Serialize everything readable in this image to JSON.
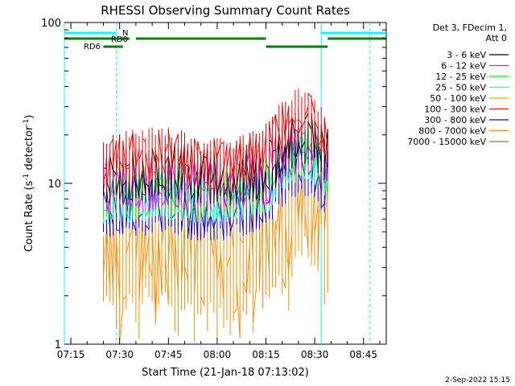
{
  "chart_data": {
    "type": "line",
    "title": "RHESSI Observing Summary Count Rates",
    "xlabel": "Start Time (21-Jan-18 07:13:02)",
    "ylabel_main": "Count Rate (s",
    "ylabel_sup1": "-1",
    "ylabel_mid": " detector",
    "ylabel_sup2": "-1",
    "ylabel_end": ")",
    "ylabel": "Count Rate (s-1 detector-1)",
    "yscale": "log",
    "ylim": [
      1,
      100
    ],
    "xlim": [
      "07:13",
      "08:52"
    ],
    "x_ticks": [
      "07:15",
      "07:30",
      "07:45",
      "08:00",
      "08:15",
      "08:30",
      "08:45"
    ],
    "y_ticks": [
      "1",
      "10",
      "100"
    ],
    "legend_title_1": "Det 3, FDecim 1,",
    "legend_title_2": "Att 0",
    "legend_position": "right",
    "footer_date": "2-Sep-2022 15:15",
    "series": [
      {
        "name": "3 - 6 keV",
        "color": "#000000",
        "x": [
          "07:25",
          "07:35",
          "07:45",
          "07:55",
          "08:05",
          "08:15",
          "08:20",
          "08:25",
          "08:30",
          "08:34"
        ],
        "values": [
          11,
          11,
          12,
          11,
          11,
          12,
          16,
          20,
          18,
          15
        ]
      },
      {
        "name": "6 - 12 keV",
        "color": "#ff00ff",
        "x": [
          "07:25",
          "07:35",
          "07:45",
          "07:55",
          "08:05",
          "08:15",
          "08:20",
          "08:25",
          "08:30",
          "08:34"
        ],
        "values": [
          10,
          10,
          10.5,
          10,
          10,
          11,
          15,
          18,
          17,
          14
        ]
      },
      {
        "name": "12 - 25 keV",
        "color": "#00ff00",
        "x": [
          "07:25",
          "07:35",
          "07:45",
          "07:55",
          "08:05",
          "08:15",
          "08:20",
          "08:25",
          "08:30",
          "08:34"
        ],
        "values": [
          9,
          9,
          9.5,
          9,
          9,
          10,
          14,
          17,
          15,
          13
        ]
      },
      {
        "name": "25 - 50 keV",
        "color": "#00ffff",
        "x": [
          "07:25",
          "07:35",
          "07:45",
          "07:55",
          "08:05",
          "08:15",
          "08:20",
          "08:25",
          "08:30",
          "08:34"
        ],
        "values": [
          8.5,
          8.5,
          9,
          8.5,
          8.5,
          9.5,
          13,
          16,
          15,
          12
        ]
      },
      {
        "name": "50 - 100 keV",
        "color": "#c8c800",
        "x": [],
        "values": []
      },
      {
        "name": "100 - 300 keV",
        "color": "#ff0000",
        "x": [
          "07:25",
          "07:30",
          "07:35",
          "07:40",
          "07:45",
          "07:50",
          "07:55",
          "08:00",
          "08:05",
          "08:10",
          "08:15",
          "08:20",
          "08:25",
          "08:30",
          "08:34"
        ],
        "values": [
          13,
          14,
          15,
          15,
          16,
          14,
          13,
          13,
          13,
          14,
          16,
          22,
          27,
          25,
          19
        ]
      },
      {
        "name": "300 - 800 keV",
        "color": "#0000ff",
        "x": [
          "07:25",
          "07:30",
          "07:35",
          "07:40",
          "07:45",
          "07:50",
          "07:55",
          "08:00",
          "08:05",
          "08:10",
          "08:15",
          "08:20",
          "08:25",
          "08:30",
          "08:34"
        ],
        "values": [
          7,
          7.5,
          7.5,
          7.5,
          8,
          7,
          7,
          7,
          7,
          7.5,
          8.5,
          11,
          13,
          12,
          10
        ]
      },
      {
        "name": "800 - 7000 keV",
        "color": "#ff8c00",
        "x": [
          "07:25",
          "07:30",
          "07:35",
          "07:40",
          "07:45",
          "07:50",
          "07:55",
          "08:00",
          "08:05",
          "08:10",
          "08:15",
          "08:20",
          "08:25",
          "08:30",
          "08:34"
        ],
        "values": [
          4,
          4,
          4.2,
          4.2,
          4.4,
          4,
          3.8,
          3.8,
          3.8,
          4,
          5,
          6,
          7,
          7.5,
          6
        ]
      },
      {
        "name": "7000 - 15000 keV",
        "color": "#808000",
        "x": [],
        "values": []
      }
    ],
    "annotations": {
      "N": {
        "label": "N",
        "color": "#00ffff",
        "intervals": [
          [
            "07:13",
            "07:29"
          ],
          [
            "08:32",
            "08:52"
          ]
        ]
      },
      "RD0": {
        "label": "RD0",
        "color": "#008000",
        "intervals": [
          [
            "07:13",
            "07:33"
          ],
          [
            "07:35",
            "08:15"
          ],
          [
            "08:34",
            "08:52"
          ]
        ]
      },
      "RD6": {
        "label": "RD6",
        "color": "#008000",
        "intervals": [
          [
            "07:25",
            "07:31"
          ],
          [
            "08:15",
            "08:34"
          ]
        ]
      }
    },
    "vertical_lines": {
      "solid_cyan": [
        "07:13",
        "08:32"
      ],
      "dashed_cyan": [
        "07:29",
        "08:47"
      ]
    },
    "grid": false
  }
}
